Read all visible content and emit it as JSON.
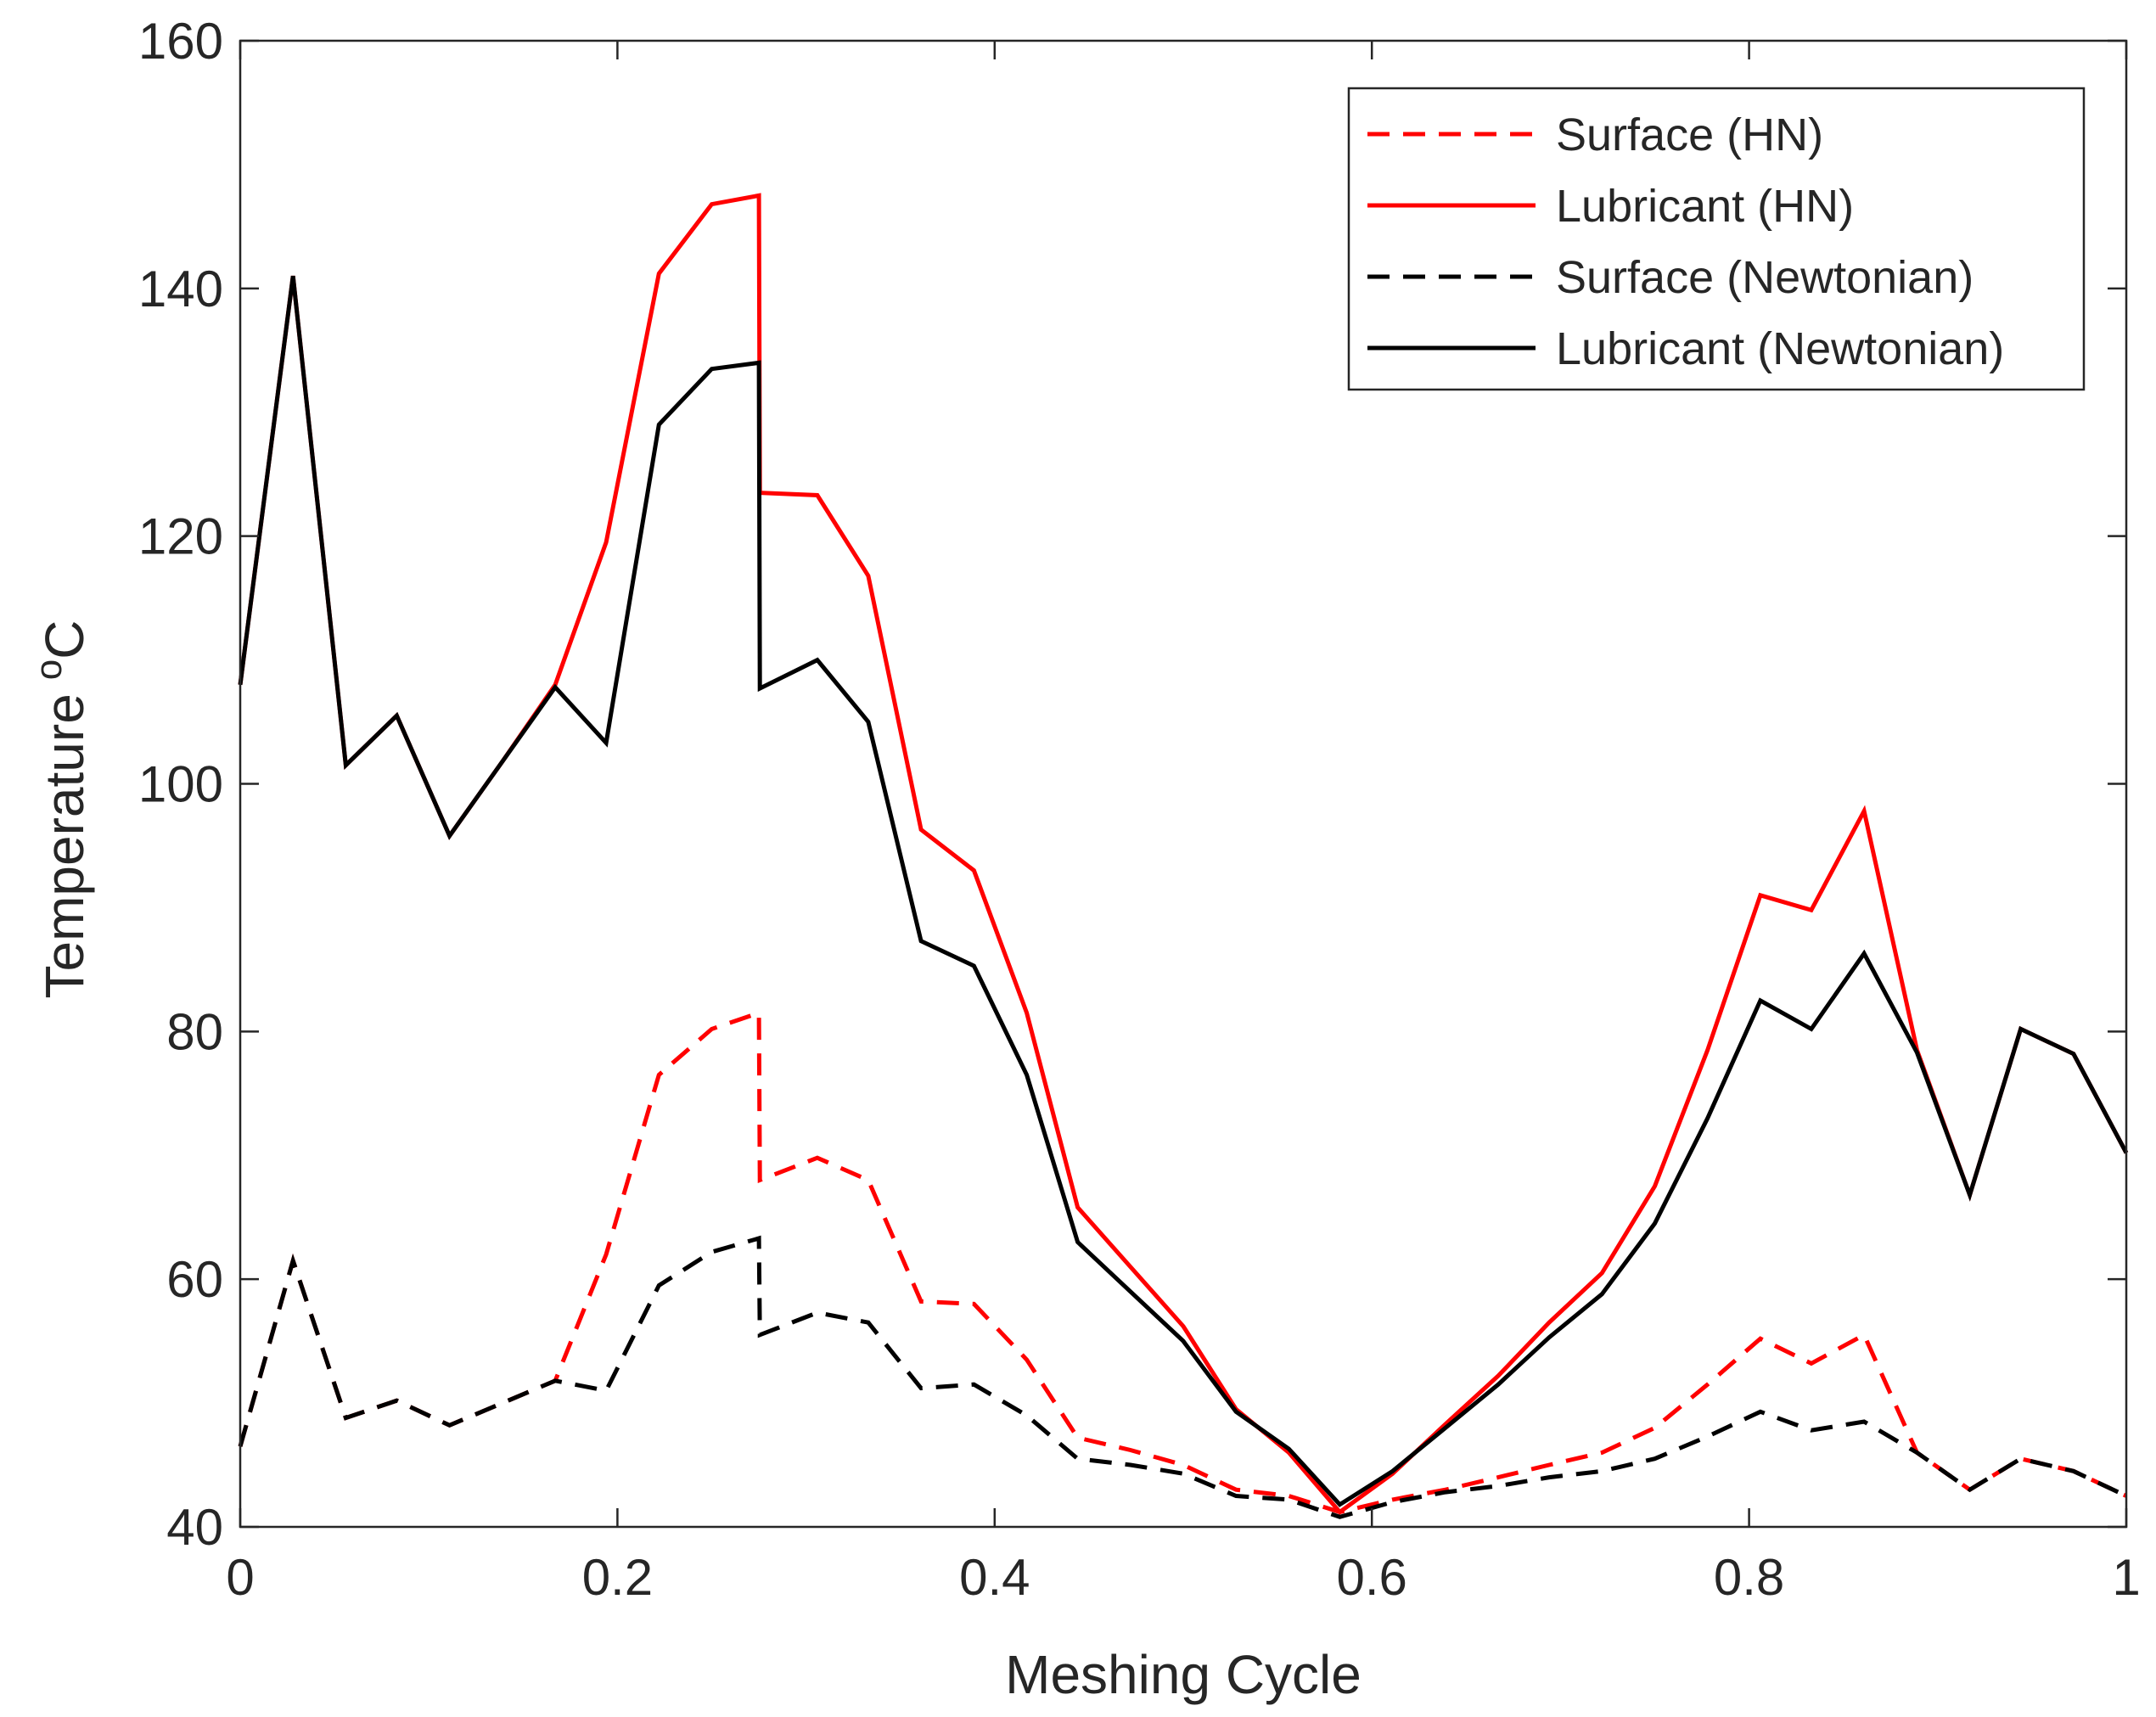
{
  "chart_data": {
    "type": "line",
    "title": "",
    "xlabel": "Meshing Cycle",
    "ylabel": "Temperature",
    "ylabel_unit": "°C",
    "xlim": [
      0,
      1
    ],
    "ylim": [
      40,
      160
    ],
    "xticks": [
      0,
      0.2,
      0.4,
      0.6,
      0.8,
      1
    ],
    "xtick_labels": [
      "0",
      "0.2",
      "0.4",
      "0.6",
      "0.8",
      "1"
    ],
    "yticks": [
      40,
      60,
      80,
      100,
      120,
      140,
      160
    ],
    "ytick_labels": [
      "40",
      "60",
      "80",
      "100",
      "120",
      "140",
      "160"
    ],
    "grid": false,
    "legend_position": "top-right",
    "series": [
      {
        "name": "Surface (HN)",
        "color": "#ff0000",
        "style": "dashed",
        "points": [
          [
            0,
            46.5
          ],
          [
            0.028,
            61.5
          ],
          [
            0.056,
            48.8
          ],
          [
            0.083,
            50.2
          ],
          [
            0.111,
            48.2
          ],
          [
            0.139,
            50
          ],
          [
            0.167,
            51.8
          ],
          [
            0.194,
            62
          ],
          [
            0.222,
            76.5
          ],
          [
            0.25,
            80.2
          ],
          [
            0.275,
            81.5
          ],
          [
            0.2755,
            68
          ],
          [
            0.306,
            69.8
          ],
          [
            0.333,
            68
          ],
          [
            0.361,
            58.2
          ],
          [
            0.389,
            58
          ],
          [
            0.417,
            53.5
          ],
          [
            0.444,
            47.2
          ],
          [
            0.472,
            46.2
          ],
          [
            0.5,
            45
          ],
          [
            0.528,
            43
          ],
          [
            0.556,
            42.5
          ],
          [
            0.583,
            41.2
          ],
          [
            0.611,
            42.2
          ],
          [
            0.639,
            43
          ],
          [
            0.667,
            44
          ],
          [
            0.694,
            45
          ],
          [
            0.722,
            46
          ],
          [
            0.75,
            48
          ],
          [
            0.778,
            51.5
          ],
          [
            0.806,
            55.2
          ],
          [
            0.833,
            53.2
          ],
          [
            0.861,
            55.5
          ],
          [
            0.889,
            46
          ],
          [
            0.917,
            43
          ],
          [
            0.944,
            45.5
          ],
          [
            0.972,
            44.5
          ],
          [
            1,
            42.5
          ]
        ]
      },
      {
        "name": "Lubricant (HN)",
        "color": "#ff0000",
        "style": "solid",
        "points": [
          [
            0,
            108
          ],
          [
            0.028,
            141
          ],
          [
            0.056,
            101.5
          ],
          [
            0.083,
            105.5
          ],
          [
            0.111,
            95.8
          ],
          [
            0.139,
            101.8
          ],
          [
            0.167,
            108
          ],
          [
            0.194,
            119.5
          ],
          [
            0.222,
            141.2
          ],
          [
            0.25,
            146.8
          ],
          [
            0.275,
            147.5
          ],
          [
            0.2755,
            123.5
          ],
          [
            0.306,
            123.3
          ],
          [
            0.333,
            116.8
          ],
          [
            0.361,
            96.3
          ],
          [
            0.389,
            93
          ],
          [
            0.417,
            81.5
          ],
          [
            0.444,
            65.8
          ],
          [
            0.472,
            61
          ],
          [
            0.5,
            56.2
          ],
          [
            0.528,
            49.5
          ],
          [
            0.556,
            46
          ],
          [
            0.583,
            41.2
          ],
          [
            0.611,
            44.3
          ],
          [
            0.639,
            48.3
          ],
          [
            0.667,
            52.2
          ],
          [
            0.694,
            56.5
          ],
          [
            0.722,
            60.5
          ],
          [
            0.75,
            67.5
          ],
          [
            0.778,
            78.5
          ],
          [
            0.806,
            91
          ],
          [
            0.833,
            89.8
          ],
          [
            0.861,
            97.8
          ],
          [
            0.889,
            78.5
          ],
          [
            0.917,
            66.8
          ],
          [
            0.944,
            80.2
          ],
          [
            0.972,
            78.2
          ],
          [
            1,
            70.2
          ]
        ]
      },
      {
        "name": "Surface (Newtonian)",
        "color": "#000000",
        "style": "dashed",
        "points": [
          [
            0,
            46.5
          ],
          [
            0.028,
            61.5
          ],
          [
            0.056,
            48.8
          ],
          [
            0.083,
            50.2
          ],
          [
            0.111,
            48.2
          ],
          [
            0.139,
            50
          ],
          [
            0.167,
            51.8
          ],
          [
            0.194,
            51
          ],
          [
            0.222,
            59.5
          ],
          [
            0.25,
            62.2
          ],
          [
            0.275,
            63.3
          ],
          [
            0.2755,
            55.5
          ],
          [
            0.306,
            57.3
          ],
          [
            0.333,
            56.5
          ],
          [
            0.361,
            51.2
          ],
          [
            0.389,
            51.5
          ],
          [
            0.417,
            49
          ],
          [
            0.444,
            45.5
          ],
          [
            0.472,
            45
          ],
          [
            0.5,
            44.3
          ],
          [
            0.528,
            42.5
          ],
          [
            0.556,
            42.2
          ],
          [
            0.583,
            40.8
          ],
          [
            0.611,
            42
          ],
          [
            0.639,
            42.8
          ],
          [
            0.667,
            43.3
          ],
          [
            0.694,
            44
          ],
          [
            0.722,
            44.5
          ],
          [
            0.75,
            45.5
          ],
          [
            0.778,
            47.3
          ],
          [
            0.806,
            49.3
          ],
          [
            0.833,
            47.8
          ],
          [
            0.861,
            48.5
          ],
          [
            0.889,
            46
          ],
          [
            0.917,
            43
          ],
          [
            0.944,
            45.5
          ],
          [
            0.972,
            44.5
          ],
          [
            1,
            42.5
          ]
        ]
      },
      {
        "name": "Lubricant (Newtonian)",
        "color": "#000000",
        "style": "solid",
        "points": [
          [
            0,
            108
          ],
          [
            0.028,
            141
          ],
          [
            0.056,
            101.5
          ],
          [
            0.083,
            105.5
          ],
          [
            0.111,
            95.8
          ],
          [
            0.139,
            101.8
          ],
          [
            0.167,
            107.8
          ],
          [
            0.194,
            103.3
          ],
          [
            0.222,
            129
          ],
          [
            0.25,
            133.5
          ],
          [
            0.275,
            134
          ],
          [
            0.2755,
            107.7
          ],
          [
            0.306,
            110
          ],
          [
            0.333,
            105
          ],
          [
            0.361,
            87.3
          ],
          [
            0.389,
            85.3
          ],
          [
            0.417,
            76.5
          ],
          [
            0.444,
            63
          ],
          [
            0.472,
            59
          ],
          [
            0.5,
            55
          ],
          [
            0.528,
            49.3
          ],
          [
            0.556,
            46.3
          ],
          [
            0.583,
            41.8
          ],
          [
            0.611,
            44.5
          ],
          [
            0.639,
            48
          ],
          [
            0.667,
            51.5
          ],
          [
            0.694,
            55.3
          ],
          [
            0.722,
            58.8
          ],
          [
            0.75,
            64.5
          ],
          [
            0.778,
            73
          ],
          [
            0.806,
            82.5
          ],
          [
            0.833,
            80.2
          ],
          [
            0.861,
            86.3
          ],
          [
            0.889,
            78.3
          ],
          [
            0.917,
            66.8
          ],
          [
            0.944,
            80.2
          ],
          [
            0.972,
            78.2
          ],
          [
            1,
            70.2
          ]
        ]
      }
    ]
  }
}
